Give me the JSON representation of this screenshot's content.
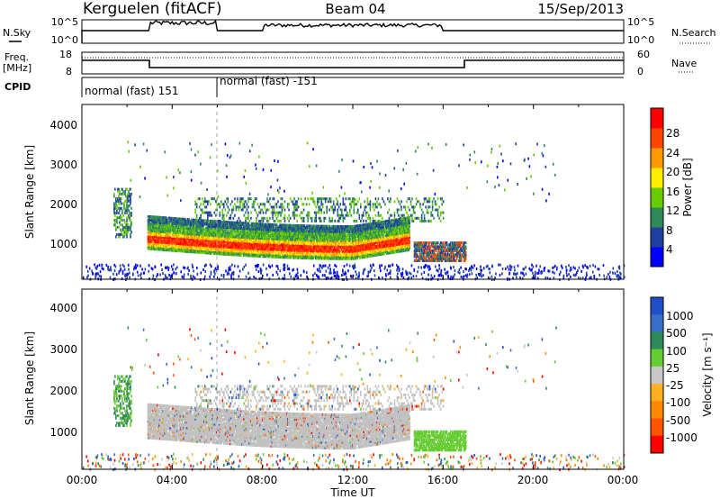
{
  "header": {
    "station": "Kerguelen (fitACF)",
    "beam": "Beam 04",
    "date": "15/Sep/2013"
  },
  "noise_panel": {
    "left_label": "N.Sky",
    "right_label": "N.Search",
    "left_ticks": [
      "10^5",
      "10^0"
    ],
    "right_ticks": [
      "10^5",
      "10^0"
    ]
  },
  "freq_panel": {
    "left_label_line1": "Freq.",
    "left_label_line2": "[MHz]",
    "left_ticks": [
      "18",
      "8"
    ],
    "right_label": "Nave",
    "right_ticks": [
      "60",
      "0"
    ]
  },
  "cpid_panel": {
    "label": "CPID",
    "segments": [
      {
        "text": "normal (fast) 151",
        "start_hour": 0
      },
      {
        "text": "normal (fast) -151",
        "start_hour": 6
      }
    ]
  },
  "x_axis": {
    "label": "Time UT",
    "ticks": [
      "00:00",
      "04:00",
      "08:00",
      "12:00",
      "16:00",
      "20:00",
      "00:00"
    ]
  },
  "colors": {
    "grey_scatter": "#c0c0c0",
    "power": [
      "#0000ff",
      "#2040a0",
      "#2e8b57",
      "#66cc00",
      "#ffee00",
      "#ff9900",
      "#ff4400",
      "#ff0000"
    ],
    "velocity": [
      "#2050c8",
      "#3a6ec8",
      "#2e8b57",
      "#66cc33",
      "#c8c8c8",
      "#ffb020",
      "#ff8800",
      "#ff5500",
      "#ff0000"
    ]
  },
  "chart_data": [
    {
      "type": "heatmap",
      "name": "power",
      "xlabel": "",
      "ylabel": "Slant Range [km]",
      "xlim": [
        0,
        24
      ],
      "ylim": [
        200,
        4600
      ],
      "yticks": [
        "1000",
        "2000",
        "3000",
        "4000"
      ],
      "colorbar": {
        "label": "Power [dB]",
        "ticks": [
          "4",
          "8",
          "12",
          "16",
          "20",
          "24",
          "28"
        ]
      }
    },
    {
      "type": "heatmap",
      "name": "velocity",
      "xlabel": "Time UT",
      "ylabel": "Slant Range [km]",
      "xlim": [
        0,
        24
      ],
      "ylim": [
        200,
        4600
      ],
      "yticks": [
        "1000",
        "2000",
        "3000",
        "4000"
      ],
      "colorbar": {
        "label": "Velocity [m s⁻¹]",
        "ticks": [
          "1000",
          "500",
          "100",
          "25",
          "-25",
          "-100",
          "-500",
          "-1000"
        ]
      }
    }
  ]
}
